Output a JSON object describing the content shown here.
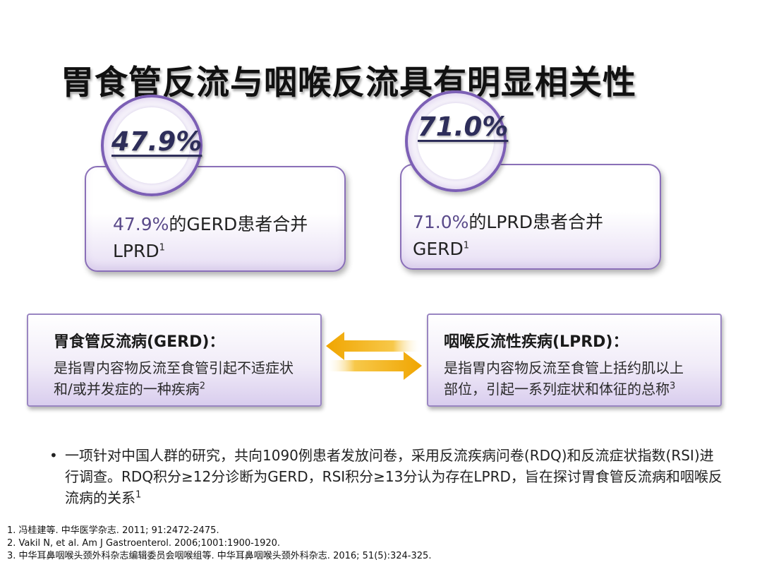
{
  "title": "胃食管反流与咽喉反流具有明显相关性",
  "stats": [
    {
      "badge_value": "47.9%",
      "text_pct": "47.9%",
      "text_rest": "的GERD患者合并",
      "text_line2": "LPRD",
      "sup": "1"
    },
    {
      "badge_value": "71.0%",
      "text_pct": "71.0%",
      "text_rest": "的LPRD患者合并",
      "text_line2": "GERD",
      "sup": "1"
    }
  ],
  "definitions": [
    {
      "title": "胃食管反流病(GERD)：",
      "line1": "是指胃内容物反流至食管引起不适症状",
      "line2": "和/或并发症的一种疾病",
      "sup": "2"
    },
    {
      "title": "咽喉反流性疾病(LPRD)：",
      "line1": "是指胃内容物反流至食管上括约肌以上",
      "line2": "部位，引起一系列症状和体征的总称",
      "sup": "3"
    }
  ],
  "bullet": {
    "dot": "•",
    "text": "一项针对中国人群的研究，共向1090例患者发放问卷，采用反流疾病问卷(RDQ)和反流症状指数(RSI)进行调查。RDQ积分≥12分诊断为GERD，RSI积分≥13分认为存在LPRD，旨在探讨胃食管反流病和咽喉反流病的关系",
    "sup": "1"
  },
  "references": [
    "1. 冯桂建等. 中华医学杂志. 2011; 91:2472-2475.",
    "2. Vakil N, et al. Am J Gastroenterol. 2006;1001:1900-1920.",
    "3. 中华耳鼻咽喉头颈外科杂志编辑委员会咽喉组等. 中华耳鼻咽喉头颈外科杂志. 2016; 51(5):324-325."
  ],
  "colors": {
    "accent_purple": "#7c5fb5",
    "arrow_gold": "#f2b21b"
  }
}
